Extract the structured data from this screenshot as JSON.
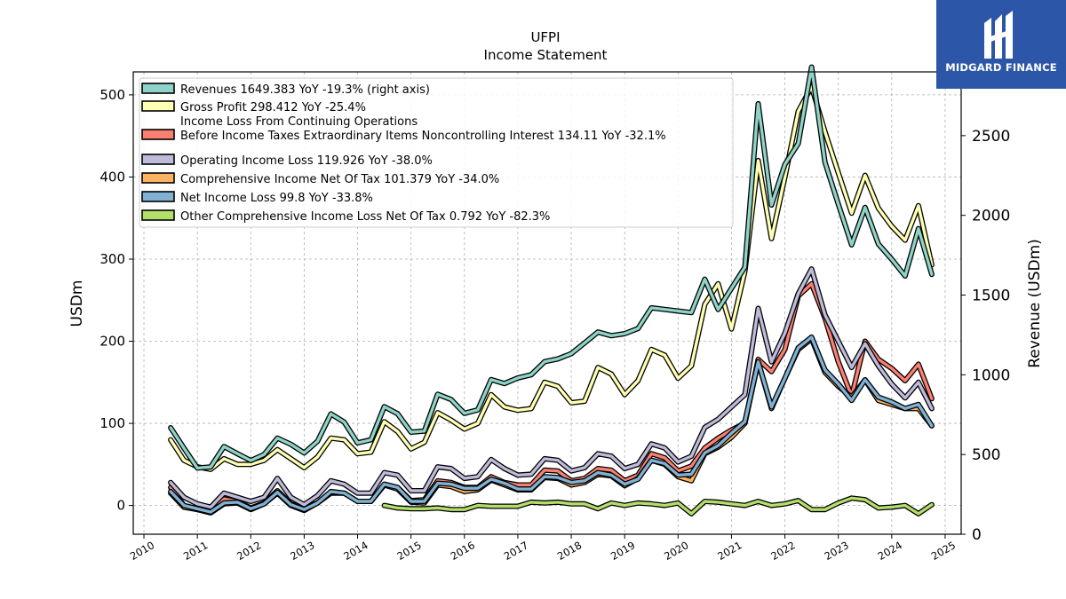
{
  "chart_data": {
    "type": "line",
    "title": "UFPI",
    "subtitle": "Income Statement",
    "ylabel": "USDm",
    "ylabel_right": "Revenue (USDm)",
    "ylim": [
      -35,
      528
    ],
    "ylim_right": [
      0,
      2900
    ],
    "yticks": [
      0,
      100,
      200,
      300,
      400,
      500
    ],
    "yticks_right": [
      0,
      500,
      1000,
      1500,
      2000,
      2500
    ],
    "xlim": [
      2009.8,
      2025.3
    ],
    "xticks": [
      "2010",
      "2011",
      "2012",
      "2013",
      "2014",
      "2015",
      "2016",
      "2017",
      "2018",
      "2019",
      "2020",
      "2021",
      "2022",
      "2023",
      "2024",
      "2025"
    ],
    "grid": true,
    "legend_position": "upper-left",
    "x": [
      2010.5,
      2010.75,
      2011.0,
      2011.25,
      2011.5,
      2011.75,
      2012.0,
      2012.25,
      2012.5,
      2012.75,
      2013.0,
      2013.25,
      2013.5,
      2013.75,
      2014.0,
      2014.25,
      2014.5,
      2014.75,
      2015.0,
      2015.25,
      2015.5,
      2015.75,
      2016.0,
      2016.25,
      2016.5,
      2016.75,
      2017.0,
      2017.25,
      2017.5,
      2017.75,
      2018.0,
      2018.25,
      2018.5,
      2018.75,
      2019.0,
      2019.25,
      2019.5,
      2019.75,
      2020.0,
      2020.25,
      2020.5,
      2020.75,
      2021.0,
      2021.25,
      2021.5,
      2021.75,
      2022.0,
      2022.25,
      2022.5,
      2022.75,
      2023.0,
      2023.25,
      2023.5,
      2023.75,
      2024.0,
      2024.25,
      2024.5,
      2024.75
    ],
    "series": [
      {
        "name": "Revenues  1649.383 YoY -19.3% (right axis)",
        "color": "#8dd3c7",
        "axis": "right",
        "values": [
          668,
          540,
          415,
          422,
          550,
          505,
          462,
          500,
          603,
          564,
          510,
          583,
          755,
          703,
          573,
          592,
          800,
          756,
          640,
          647,
          878,
          845,
          758,
          780,
          970,
          945,
          980,
          1000,
          1082,
          1100,
          1133,
          1200,
          1268,
          1245,
          1258,
          1290,
          1420,
          1410,
          1400,
          1390,
          1600,
          1410,
          1542,
          1675,
          2700,
          2065,
          2320,
          2450,
          2930,
          2333,
          2070,
          1815,
          2050,
          1820,
          1725,
          1620,
          1917,
          1630
        ]
      },
      {
        "name": "Gross Profit  298.412 YoY -25.4%",
        "color": "#ffffb3",
        "axis": "left",
        "values": [
          80,
          55,
          47,
          44,
          57,
          50,
          50,
          55,
          68,
          57,
          46,
          59,
          82,
          80,
          63,
          65,
          102,
          90,
          69,
          77,
          113,
          104,
          93,
          100,
          135,
          120,
          116,
          118,
          150,
          145,
          125,
          127,
          168,
          160,
          135,
          152,
          190,
          183,
          155,
          170,
          245,
          270,
          215,
          285,
          420,
          325,
          400,
          480,
          510,
          455,
          405,
          356,
          402,
          362,
          340,
          323,
          365,
          293
        ]
      },
      {
        "name": "Income Loss From Continuing Operations\nBefore Income Taxes Extraordinary Items Noncontrolling Interest  134.11 YoY -32.1%",
        "color": "#fb8072",
        "axis": "left",
        "values": [
          22,
          0,
          -5,
          -7,
          8,
          5,
          -3,
          3,
          18,
          2,
          -3,
          3,
          15,
          15,
          5,
          5,
          25,
          22,
          6,
          7,
          30,
          28,
          22,
          22,
          35,
          28,
          25,
          25,
          43,
          42,
          30,
          33,
          45,
          43,
          30,
          37,
          63,
          58,
          42,
          48,
          70,
          82,
          92,
          100,
          178,
          163,
          190,
          255,
          270,
          228,
          175,
          133,
          200,
          178,
          167,
          152,
          172,
          130
        ]
      },
      {
        "name": "Operating Income Loss  119.926 YoY -38.0%",
        "color": "#bebada",
        "axis": "left",
        "values": [
          28,
          10,
          2,
          -2,
          15,
          10,
          5,
          10,
          33,
          10,
          1,
          12,
          30,
          26,
          15,
          15,
          40,
          37,
          18,
          18,
          47,
          45,
          33,
          35,
          56,
          45,
          37,
          38,
          57,
          55,
          42,
          46,
          63,
          60,
          45,
          50,
          75,
          70,
          53,
          60,
          95,
          105,
          120,
          135,
          240,
          175,
          210,
          258,
          288,
          232,
          200,
          168,
          197,
          170,
          148,
          131,
          150,
          118
        ]
      },
      {
        "name": "Comprehensive Income Net Of Tax  101.379 YoY -34.0%",
        "color": "#fdb462",
        "axis": "left",
        "values": [
          15,
          -2,
          -5,
          -9,
          2,
          3,
          -5,
          2,
          15,
          0,
          -6,
          3,
          16,
          15,
          5,
          5,
          25,
          20,
          4,
          3,
          25,
          23,
          17,
          19,
          31,
          25,
          19,
          19,
          34,
          33,
          25,
          28,
          38,
          36,
          24,
          33,
          55,
          50,
          35,
          30,
          63,
          71,
          83,
          100,
          175,
          118,
          155,
          190,
          203,
          162,
          145,
          132,
          153,
          128,
          123,
          118,
          118,
          97
        ]
      },
      {
        "name": "Net Income Loss  99.8 YoY -33.8%",
        "color": "#80b1d3",
        "axis": "left",
        "values": [
          17,
          0,
          -4,
          -8,
          3,
          4,
          -4,
          2,
          16,
          1,
          -5,
          3,
          17,
          15,
          5,
          5,
          26,
          22,
          5,
          5,
          27,
          26,
          21,
          21,
          32,
          27,
          20,
          20,
          35,
          34,
          28,
          30,
          40,
          37,
          26,
          32,
          55,
          51,
          37,
          38,
          64,
          73,
          88,
          102,
          175,
          120,
          155,
          192,
          205,
          165,
          148,
          128,
          153,
          132,
          126,
          118,
          123,
          97
        ]
      },
      {
        "name": "Other Comprehensive Income Loss Net Of Tax  0.792 YoY -82.3%",
        "color": "#b3de69",
        "axis": "left",
        "values": [
          null,
          null,
          null,
          null,
          null,
          null,
          null,
          null,
          null,
          null,
          null,
          null,
          null,
          null,
          null,
          null,
          0,
          -3,
          -4,
          -4,
          -3,
          -5,
          -5,
          0,
          -1,
          -1,
          -1,
          4,
          3,
          4,
          2,
          2,
          -4,
          3,
          0,
          3,
          2,
          0,
          3,
          -10,
          5,
          4,
          2,
          0,
          5,
          0,
          2,
          6,
          -5,
          -5,
          3,
          9,
          7,
          -3,
          -2,
          0,
          -10,
          1
        ]
      }
    ]
  },
  "logo": {
    "text": "MIDGARD FINANCE"
  }
}
